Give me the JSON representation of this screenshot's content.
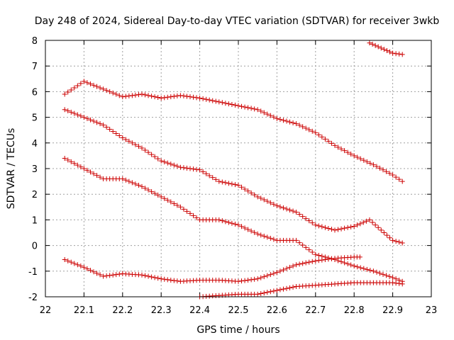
{
  "chart_data": {
    "type": "scatter",
    "title": "Day 248 of 2024, Sidereal Day-to-day VTEC variation (SDTVAR) for receiver 3wkb",
    "xlabel": "GPS time / hours",
    "ylabel": "SDTVAR / TECUs",
    "xlim": [
      22,
      23
    ],
    "ylim": [
      -2,
      8
    ],
    "x_ticks": [
      "22",
      "22.1",
      "22.2",
      "22.3",
      "22.4",
      "22.5",
      "22.6",
      "22.7",
      "22.8",
      "22.9",
      "23"
    ],
    "y_ticks": [
      "-2",
      "-1",
      "0",
      "1",
      "2",
      "3",
      "4",
      "5",
      "6",
      "7",
      "8"
    ],
    "grid": true,
    "marker": "+",
    "marker_color": "#cc0000",
    "series": [
      {
        "name": "trace-a",
        "points": [
          [
            22.05,
            5.9
          ],
          [
            22.1,
            6.4
          ],
          [
            22.15,
            6.1
          ],
          [
            22.2,
            5.8
          ],
          [
            22.25,
            5.9
          ],
          [
            22.3,
            5.75
          ],
          [
            22.35,
            5.85
          ],
          [
            22.4,
            5.75
          ],
          [
            22.45,
            5.6
          ],
          [
            22.5,
            5.45
          ],
          [
            22.55,
            5.3
          ],
          [
            22.6,
            4.95
          ],
          [
            22.65,
            4.75
          ],
          [
            22.7,
            4.4
          ],
          [
            22.75,
            3.9
          ],
          [
            22.8,
            3.5
          ],
          [
            22.85,
            3.15
          ],
          [
            22.9,
            2.75
          ],
          [
            22.925,
            2.5
          ]
        ]
      },
      {
        "name": "trace-b",
        "points": [
          [
            22.05,
            5.3
          ],
          [
            22.1,
            5.0
          ],
          [
            22.15,
            4.7
          ],
          [
            22.2,
            4.2
          ],
          [
            22.25,
            3.8
          ],
          [
            22.3,
            3.3
          ],
          [
            22.35,
            3.05
          ],
          [
            22.4,
            2.95
          ],
          [
            22.45,
            2.5
          ],
          [
            22.5,
            2.35
          ],
          [
            22.55,
            1.9
          ],
          [
            22.6,
            1.55
          ],
          [
            22.65,
            1.3
          ],
          [
            22.7,
            0.8
          ],
          [
            22.75,
            0.6
          ],
          [
            22.8,
            0.75
          ],
          [
            22.84,
            1.0
          ],
          [
            22.87,
            0.6
          ],
          [
            22.9,
            0.2
          ],
          [
            22.925,
            0.1
          ]
        ]
      },
      {
        "name": "trace-c",
        "points": [
          [
            22.05,
            3.4
          ],
          [
            22.1,
            3.0
          ],
          [
            22.15,
            2.6
          ],
          [
            22.2,
            2.6
          ],
          [
            22.25,
            2.3
          ],
          [
            22.3,
            1.9
          ],
          [
            22.35,
            1.5
          ],
          [
            22.4,
            1.0
          ],
          [
            22.45,
            1.0
          ],
          [
            22.5,
            0.8
          ],
          [
            22.55,
            0.45
          ],
          [
            22.6,
            0.2
          ],
          [
            22.65,
            0.2
          ],
          [
            22.7,
            -0.35
          ],
          [
            22.75,
            -0.55
          ],
          [
            22.8,
            -0.8
          ],
          [
            22.85,
            -1.0
          ],
          [
            22.9,
            -1.25
          ],
          [
            22.925,
            -1.4
          ]
        ]
      },
      {
        "name": "trace-d",
        "points": [
          [
            22.05,
            -0.55
          ],
          [
            22.1,
            -0.85
          ],
          [
            22.15,
            -1.2
          ],
          [
            22.2,
            -1.1
          ],
          [
            22.25,
            -1.15
          ],
          [
            22.3,
            -1.3
          ],
          [
            22.35,
            -1.4
          ],
          [
            22.4,
            -1.35
          ],
          [
            22.45,
            -1.35
          ],
          [
            22.5,
            -1.4
          ],
          [
            22.55,
            -1.3
          ],
          [
            22.6,
            -1.05
          ],
          [
            22.65,
            -0.75
          ],
          [
            22.7,
            -0.6
          ],
          [
            22.75,
            -0.5
          ],
          [
            22.8,
            -0.45
          ],
          [
            22.815,
            -0.45
          ]
        ]
      },
      {
        "name": "trace-e",
        "points": [
          [
            22.4,
            -2.0
          ],
          [
            22.45,
            -1.95
          ],
          [
            22.5,
            -1.9
          ],
          [
            22.55,
            -1.9
          ],
          [
            22.6,
            -1.75
          ],
          [
            22.65,
            -1.6
          ],
          [
            22.7,
            -1.55
          ],
          [
            22.75,
            -1.5
          ],
          [
            22.8,
            -1.45
          ],
          [
            22.85,
            -1.45
          ],
          [
            22.9,
            -1.45
          ],
          [
            22.925,
            -1.5
          ]
        ]
      },
      {
        "name": "trace-f",
        "points": [
          [
            22.84,
            7.9
          ],
          [
            22.87,
            7.7
          ],
          [
            22.9,
            7.5
          ],
          [
            22.925,
            7.45
          ]
        ]
      }
    ]
  }
}
